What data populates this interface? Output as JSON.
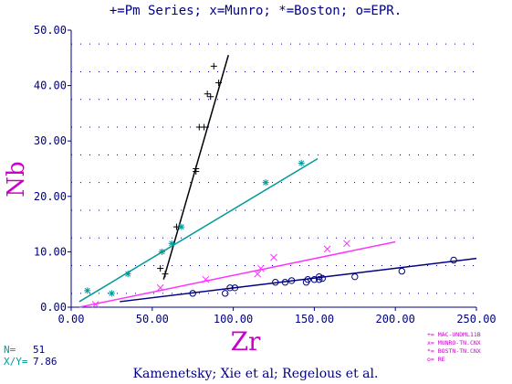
{
  "chart_data": {
    "type": "scatter",
    "title": "+=Pm Series; x=Munro; *=Boston; o=EPR.",
    "xlabel": "Zr",
    "ylabel": "Nb",
    "footer": "Kamenetsky; Xie et al; Regelous et al.",
    "xlim": [
      0,
      250
    ],
    "ylim": [
      0,
      50
    ],
    "xticks": [
      "0.00",
      "50.00",
      "100.00",
      "150.00",
      "200.00",
      "250.00"
    ],
    "yticks": [
      "0.00",
      "10.00",
      "20.00",
      "30.00",
      "40.00",
      "50.00"
    ],
    "grid": true,
    "stats": {
      "n_label": "N=",
      "n": "51",
      "xy_label": "X/Y=",
      "xy": "7.86"
    },
    "legend": {
      "placement": "bottom-right",
      "entries": [
        "+= MAC-UNDML11B",
        "x= MUNRO-TN.CNX",
        "*= BOSTN-TN.CNX",
        "o= RE"
      ]
    },
    "series": [
      {
        "marker": "+",
        "color": "#000000",
        "points": [
          [
            55,
            7
          ],
          [
            58,
            6
          ],
          [
            65,
            14.5
          ],
          [
            77,
            24.5
          ],
          [
            77,
            25
          ],
          [
            79,
            32.5
          ],
          [
            82,
            32.5
          ],
          [
            86,
            38
          ],
          [
            88,
            43.5
          ],
          [
            91,
            40.5
          ],
          [
            84,
            38.5
          ]
        ],
        "fit": [
          [
            57,
            5
          ],
          [
            97,
            45.5
          ]
        ]
      },
      {
        "marker": "x",
        "color": "#ff33ff",
        "points": [
          [
            15,
            0.5
          ],
          [
            55,
            3.5
          ],
          [
            83,
            5
          ],
          [
            115,
            6
          ],
          [
            117,
            7
          ],
          [
            125,
            9
          ],
          [
            158,
            10.5
          ],
          [
            170,
            11.5
          ]
        ],
        "fit": [
          [
            5,
            0
          ],
          [
            200,
            11.8
          ]
        ]
      },
      {
        "marker": "*",
        "color": "#009999",
        "points": [
          [
            10,
            3
          ],
          [
            25,
            2.5
          ],
          [
            35,
            6
          ],
          [
            56,
            10
          ],
          [
            62,
            11.5
          ],
          [
            68,
            14.5
          ],
          [
            120,
            22.5
          ],
          [
            142,
            26
          ]
        ],
        "fit": [
          [
            5,
            1
          ],
          [
            152,
            26.8
          ]
        ]
      },
      {
        "marker": "o",
        "color": "#000080",
        "points": [
          [
            75,
            2.5
          ],
          [
            95,
            2.5
          ],
          [
            98,
            3.5
          ],
          [
            101,
            3.5
          ],
          [
            126,
            4.5
          ],
          [
            132,
            4.5
          ],
          [
            136,
            4.8
          ],
          [
            145,
            4.5
          ],
          [
            146,
            5
          ],
          [
            150,
            5
          ],
          [
            153,
            5
          ],
          [
            153,
            5.5
          ],
          [
            155,
            5.2
          ],
          [
            175,
            5.5
          ],
          [
            204,
            6.5
          ],
          [
            236,
            8.5
          ]
        ],
        "fit": [
          [
            30,
            1
          ],
          [
            250,
            8.8
          ]
        ]
      }
    ]
  }
}
